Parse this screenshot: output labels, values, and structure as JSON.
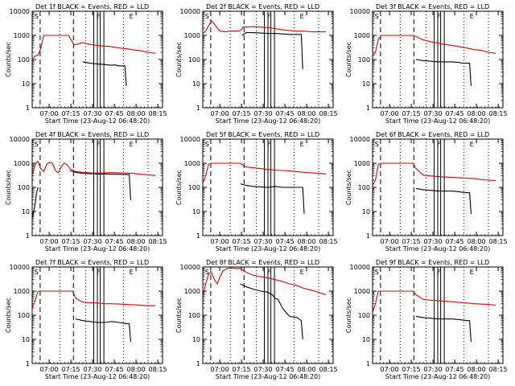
{
  "ylabel": "Counts/sec",
  "xlabel": "Start Time (23-Aug-12 06:48:20)",
  "x_ticks": [
    "07:00",
    "07:15",
    "07:30",
    "07:45",
    "08:00",
    "08:15"
  ],
  "y_ticks": [
    "1",
    "10",
    "100",
    "1000",
    "10000"
  ],
  "markers": {
    "s": "S",
    "f": "F",
    "e": "E"
  },
  "colors": {
    "events": "#000000",
    "lld": "#e00000"
  },
  "chart_data": [
    {
      "type": "line",
      "title": "Det 1f BLACK = Events, RED = LLD",
      "xlabel": "Start Time (23-Aug-12 06:48:20)",
      "ylabel": "Counts/sec",
      "yscale": "log",
      "ylim": [
        1,
        10000
      ],
      "series": [
        {
          "name": "Events",
          "color": "#000000",
          "x": [
            25,
            26,
            29,
            35,
            40,
            45,
            50,
            52,
            55,
            57,
            60,
            62,
            64,
            65
          ],
          "y": [
            null,
            null,
            null,
            80,
            70,
            65,
            62,
            60,
            58,
            60,
            55,
            55,
            55,
            8
          ]
        },
        {
          "name": "LLD",
          "color": "#e00000",
          "x": [
            0,
            2,
            4,
            6,
            8,
            10,
            12,
            15,
            20,
            24,
            25,
            26,
            29,
            35,
            40,
            45,
            50,
            55,
            60,
            65,
            70,
            75,
            80,
            85
          ],
          "y": [
            100,
            140,
            150,
            300,
            1000,
            1000,
            1000,
            1000,
            1000,
            1000,
            1000,
            800,
            400,
            500,
            420,
            380,
            360,
            340,
            300,
            280,
            250,
            230,
            200,
            180
          ]
        }
      ]
    },
    {
      "type": "line",
      "title": "Det 2f BLACK = Events, RED = LLD",
      "xlabel": "Start Time (23-Aug-12 06:48:20)",
      "ylabel": "Counts/sec",
      "yscale": "log",
      "ylim": [
        1,
        10000
      ],
      "series": [
        {
          "name": "Events",
          "color": "#000000",
          "x": [
            26,
            27,
            30,
            35,
            40,
            45,
            50,
            55,
            60,
            65,
            68,
            69
          ],
          "y": [
            null,
            1000,
            1300,
            1300,
            1250,
            1200,
            1200,
            1150,
            1100,
            1100,
            1100,
            40
          ]
        },
        {
          "name": "LLD",
          "color": "#e00000",
          "x": [
            0,
            2,
            4,
            6,
            8,
            10,
            12,
            15,
            20,
            24,
            26,
            28,
            30,
            35,
            40,
            45,
            50,
            55,
            60,
            65,
            70,
            75,
            80,
            85
          ],
          "y": [
            1200,
            1500,
            2500,
            4000,
            3000,
            2000,
            1500,
            1400,
            1500,
            1500,
            1600,
            2200,
            2200,
            2300,
            2200,
            2100,
            1900,
            1700,
            1600,
            1500,
            1500,
            1400,
            1400,
            1400
          ]
        }
      ]
    },
    {
      "type": "line",
      "title": "Det 3f BLACK = Events, RED = LLD",
      "xlabel": "Start Time (23-Aug-12 06:48:20)",
      "ylabel": "Counts/sec",
      "yscale": "log",
      "ylim": [
        1,
        10000
      ],
      "series": [
        {
          "name": "Events",
          "color": "#000000",
          "x": [
            29,
            30,
            35,
            40,
            45,
            50,
            55,
            60,
            62,
            65,
            67,
            68
          ],
          "y": [
            null,
            100,
            90,
            85,
            80,
            80,
            80,
            75,
            70,
            70,
            70,
            8
          ]
        },
        {
          "name": "LLD",
          "color": "#e00000",
          "x": [
            0,
            2,
            4,
            6,
            8,
            10,
            15,
            20,
            25,
            28,
            30,
            35,
            40,
            45,
            50,
            55,
            60,
            65,
            70,
            75,
            80,
            85
          ],
          "y": [
            130,
            200,
            700,
            1000,
            1000,
            1000,
            1000,
            1000,
            1000,
            1000,
            900,
            650,
            550,
            480,
            420,
            380,
            340,
            300,
            260,
            240,
            200,
            180
          ]
        }
      ]
    },
    {
      "type": "line",
      "title": "Det 4f BLACK = Events, RED = LLD",
      "xlabel": "Start Time (23-Aug-12 06:48:20)",
      "ylabel": "Counts/sec",
      "yscale": "log",
      "ylim": [
        1,
        10000
      ],
      "series": [
        {
          "name": "Events",
          "color": "#000000",
          "x": [
            0,
            2,
            3,
            4,
            25,
            26,
            30,
            35,
            40,
            45,
            50,
            55,
            60,
            65,
            67,
            68
          ],
          "y": [
            5,
            20,
            60,
            100,
            null,
            500,
            420,
            380,
            370,
            360,
            360,
            350,
            350,
            340,
            340,
            30
          ]
        },
        {
          "name": "LLD",
          "color": "#e00000",
          "x": [
            0,
            2,
            4,
            6,
            8,
            10,
            12,
            14,
            16,
            18,
            20,
            22,
            24,
            26,
            30,
            35,
            40,
            45,
            50,
            55,
            60,
            65,
            70,
            75,
            80,
            85
          ],
          "y": [
            300,
            900,
            1200,
            600,
            450,
            900,
            1100,
            1000,
            500,
            400,
            700,
            1000,
            900,
            600,
            450,
            420,
            400,
            390,
            400,
            410,
            400,
            390,
            380,
            350,
            330,
            310
          ]
        }
      ]
    },
    {
      "type": "line",
      "title": "Det 5f BLACK = Events, RED = LLD",
      "xlabel": "Start Time (23-Aug-12 06:48:20)",
      "ylabel": "Counts/sec",
      "yscale": "log",
      "ylim": [
        1,
        10000
      ],
      "series": [
        {
          "name": "Events",
          "color": "#000000",
          "x": [
            25,
            26,
            30,
            35,
            40,
            45,
            50,
            55,
            60,
            65,
            69,
            70
          ],
          "y": [
            null,
            140,
            120,
            110,
            105,
            100,
            110,
            100,
            100,
            100,
            100,
            8
          ]
        },
        {
          "name": "LLD",
          "color": "#e00000",
          "x": [
            0,
            2,
            4,
            6,
            8,
            10,
            15,
            20,
            24,
            26,
            28,
            30,
            35,
            40,
            45,
            50,
            55,
            60,
            65,
            70,
            75,
            80,
            85
          ],
          "y": [
            150,
            300,
            900,
            1000,
            1000,
            1000,
            1000,
            1000,
            1000,
            1000,
            800,
            700,
            650,
            600,
            560,
            520,
            500,
            480,
            450,
            420,
            400,
            380,
            360
          ]
        }
      ]
    },
    {
      "type": "line",
      "title": "Det 6f BLACK = Events, RED = LLD",
      "xlabel": "Start Time (23-Aug-12 06:48:20)",
      "ylabel": "Counts/sec",
      "yscale": "log",
      "ylim": [
        1,
        10000
      ],
      "series": [
        {
          "name": "Events",
          "color": "#000000",
          "x": [
            29,
            30,
            35,
            40,
            45,
            50,
            55,
            60,
            65,
            67,
            68
          ],
          "y": [
            null,
            90,
            80,
            75,
            70,
            70,
            70,
            65,
            60,
            60,
            8
          ]
        },
        {
          "name": "LLD",
          "color": "#e00000",
          "x": [
            0,
            2,
            4,
            6,
            8,
            10,
            15,
            20,
            25,
            28,
            30,
            35,
            40,
            45,
            50,
            55,
            60,
            65,
            70,
            75,
            80,
            85
          ],
          "y": [
            120,
            200,
            900,
            1000,
            1000,
            1000,
            1000,
            1000,
            1000,
            1000,
            600,
            320,
            300,
            280,
            270,
            260,
            250,
            240,
            230,
            210,
            200,
            190
          ]
        }
      ]
    },
    {
      "type": "line",
      "title": "Det 7f BLACK = Events, RED = LLD",
      "xlabel": "Start Time (23-Aug-12 06:48:20)",
      "ylabel": "Counts/sec",
      "yscale": "log",
      "ylim": [
        1,
        10000
      ],
      "series": [
        {
          "name": "Events",
          "color": "#000000",
          "x": [
            29,
            30,
            35,
            40,
            45,
            50,
            55,
            60,
            65,
            67,
            68
          ],
          "y": [
            null,
            70,
            60,
            55,
            50,
            50,
            55,
            50,
            45,
            45,
            8
          ]
        },
        {
          "name": "LLD",
          "color": "#e00000",
          "x": [
            0,
            2,
            4,
            6,
            8,
            10,
            15,
            20,
            25,
            28,
            30,
            35,
            40,
            45,
            50,
            55,
            60,
            65,
            70,
            75,
            80,
            85
          ],
          "y": [
            200,
            400,
            1000,
            1000,
            1000,
            1000,
            1000,
            1000,
            1000,
            1000,
            500,
            350,
            330,
            320,
            300,
            300,
            290,
            280,
            270,
            260,
            250,
            250
          ]
        }
      ]
    },
    {
      "type": "line",
      "title": "Det 8f BLACK = Events, RED = LLD",
      "xlabel": "Start Time (23-Aug-12 06:48:20)",
      "ylabel": "Counts/sec",
      "yscale": "log",
      "ylim": [
        1,
        10000
      ],
      "series": [
        {
          "name": "Events",
          "color": "#000000",
          "x": [
            25,
            26,
            30,
            35,
            40,
            45,
            48,
            50,
            52,
            55,
            58,
            60,
            65,
            68,
            69
          ],
          "y": [
            null,
            2000,
            1500,
            1200,
            1000,
            900,
            700,
            500,
            450,
            200,
            120,
            90,
            80,
            60,
            10
          ]
        },
        {
          "name": "LLD",
          "color": "#e00000",
          "x": [
            0,
            2,
            4,
            6,
            8,
            10,
            12,
            14,
            16,
            18,
            20,
            24,
            26,
            30,
            35,
            40,
            45,
            50,
            55,
            60,
            65,
            70,
            75,
            80,
            85
          ],
          "y": [
            600,
            2000,
            5000,
            6000,
            3000,
            2000,
            4000,
            7000,
            8000,
            9000,
            9000,
            8500,
            9000,
            6000,
            4500,
            4000,
            3500,
            3000,
            2500,
            2000,
            1700,
            1300,
            1100,
            900,
            700
          ]
        }
      ]
    },
    {
      "type": "line",
      "title": "Det 9f BLACK = Events, RED = LLD",
      "xlabel": "Start Time (23-Aug-12 06:48:20)",
      "ylabel": "Counts/sec",
      "yscale": "log",
      "ylim": [
        1,
        10000
      ],
      "series": [
        {
          "name": "Events",
          "color": "#000000",
          "x": [
            29,
            30,
            35,
            40,
            45,
            50,
            55,
            60,
            65,
            67,
            68
          ],
          "y": [
            null,
            90,
            80,
            75,
            70,
            70,
            70,
            65,
            60,
            60,
            8
          ]
        },
        {
          "name": "LLD",
          "color": "#e00000",
          "x": [
            0,
            2,
            4,
            6,
            8,
            10,
            15,
            20,
            25,
            28,
            30,
            35,
            40,
            45,
            50,
            55,
            60,
            65,
            70,
            75,
            80,
            85
          ],
          "y": [
            130,
            300,
            1000,
            1000,
            1000,
            1000,
            1000,
            1000,
            1000,
            1000,
            700,
            450,
            420,
            400,
            380,
            360,
            340,
            320,
            300,
            290,
            280,
            260
          ]
        }
      ]
    }
  ]
}
